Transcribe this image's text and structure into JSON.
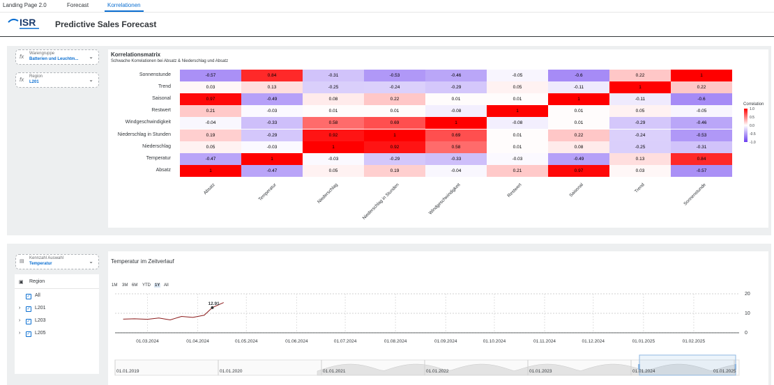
{
  "tabs": [
    {
      "label": "Landing Page 2.0"
    },
    {
      "label": "Forecast"
    },
    {
      "label": "Korrelationen"
    }
  ],
  "header": {
    "logo_text": "ISR",
    "title": "Predictive Sales Forecast"
  },
  "filters": [
    {
      "label": "Warengruppe",
      "value": "Batterien und Leuchtm..."
    },
    {
      "label": "Region",
      "value": "L201"
    }
  ],
  "matrix": {
    "title": "Korrelationsmatrix",
    "subtitle": "Schwache Korrelationen bei Absatz & Niederschlag und Absatz",
    "rows": [
      "Sonnenstunde",
      "Trend",
      "Saisonal",
      "Restwert",
      "Windgeschwindigkeit",
      "Niederschlag in Stunden",
      "Niederschlag",
      "Temperatur",
      "Absatz"
    ],
    "cols": [
      "Absatz",
      "Temperatur",
      "Niederschlag",
      "Niederschlag in Stunden",
      "Windgeschwindigkeit",
      "Restwert",
      "Saisonal",
      "Trend",
      "Sonnenstunde"
    ],
    "values": [
      [
        "-0.57",
        "0.84",
        "-0.31",
        "-0.53",
        "-0.46",
        "-0.05",
        "-0.6",
        "0.22",
        "1"
      ],
      [
        "0.03",
        "0.13",
        "-0.25",
        "-0.24",
        "-0.29",
        "0.05",
        "-0.11",
        "1",
        "0.22"
      ],
      [
        "0.97",
        "-0.49",
        "0.08",
        "0.22",
        "0.01",
        "0.01",
        "1",
        "-0.11",
        "-0.6"
      ],
      [
        "0.21",
        "-0.03",
        "0.01",
        "0.01",
        "-0.08",
        "1",
        "0.01",
        "0.05",
        "-0.05"
      ],
      [
        "-0.04",
        "-0.33",
        "0.58",
        "0.69",
        "1",
        "-0.08",
        "0.01",
        "-0.29",
        "-0.46"
      ],
      [
        "0.19",
        "-0.29",
        "0.92",
        "1",
        "0.69",
        "0.01",
        "0.22",
        "-0.24",
        "-0.53"
      ],
      [
        "0.05",
        "-0.03",
        "1",
        "0.92",
        "0.58",
        "0.01",
        "0.08",
        "-0.25",
        "-0.31"
      ],
      [
        "-0.47",
        "1",
        "-0.03",
        "-0.29",
        "-0.33",
        "-0.03",
        "-0.49",
        "0.13",
        "0.84"
      ],
      [
        "1",
        "-0.47",
        "0.05",
        "0.19",
        "-0.04",
        "0.21",
        "0.97",
        "0.03",
        "-0.57"
      ]
    ],
    "legend": {
      "title": "Correlation",
      "ticks": [
        "1.0",
        "0.5",
        "0.0",
        "-0.5",
        "-1.0"
      ]
    },
    "colors": {
      "positive": "#ff0000",
      "negative": "#6a3df0",
      "neutral": "#ffffff"
    }
  },
  "kennzahl": {
    "label": "Kennzahl Auswahl",
    "value": "Temperatur"
  },
  "region_tree": {
    "title": "Region",
    "items": [
      "All",
      "L201",
      "L203",
      "L205"
    ]
  },
  "timechart": {
    "title": "Temperatur im Zeitverlauf",
    "ranges": [
      "1M",
      "3M",
      "6M",
      "YTD",
      "1Y",
      "All"
    ],
    "selected_range": "1Y",
    "y_ticks": [
      "20",
      "10",
      "0"
    ],
    "x_ticks": [
      "01.03.2024",
      "01.04.2024",
      "01.05.2024",
      "01.06.2024",
      "01.07.2024",
      "01.08.2024",
      "01.09.2024",
      "01.10.2024",
      "01.11.2024",
      "01.12.2024",
      "01.01.2025",
      "01.02.2025"
    ],
    "navigator_ticks": [
      "01.01.2019",
      "01.01.2020",
      "01.01.2021",
      "01.01.2022",
      "01.01.2023",
      "01.01.2024",
      "01.01.2025"
    ],
    "tooltip_value": "12.91",
    "line_color": "#8b1a1a"
  },
  "chart_data": {
    "type": "line",
    "title": "Temperatur im Zeitverlauf",
    "series": [
      {
        "values": [
          {
            "x": "2024-02-15",
            "y": 7.0
          },
          {
            "x": "2024-02-22",
            "y": 7.2
          },
          {
            "x": "2024-03-01",
            "y": 6.9
          },
          {
            "x": "2024-03-08",
            "y": 7.6
          },
          {
            "x": "2024-03-15",
            "y": 6.6
          },
          {
            "x": "2024-03-22",
            "y": 8.4
          },
          {
            "x": "2024-03-29",
            "y": 7.9
          },
          {
            "x": "2024-04-05",
            "y": 9.0
          },
          {
            "x": "2024-04-10",
            "y": 12.91
          },
          {
            "x": "2024-04-17",
            "y": 15.5
          }
        ]
      }
    ],
    "ylim": [
      0,
      20
    ]
  }
}
